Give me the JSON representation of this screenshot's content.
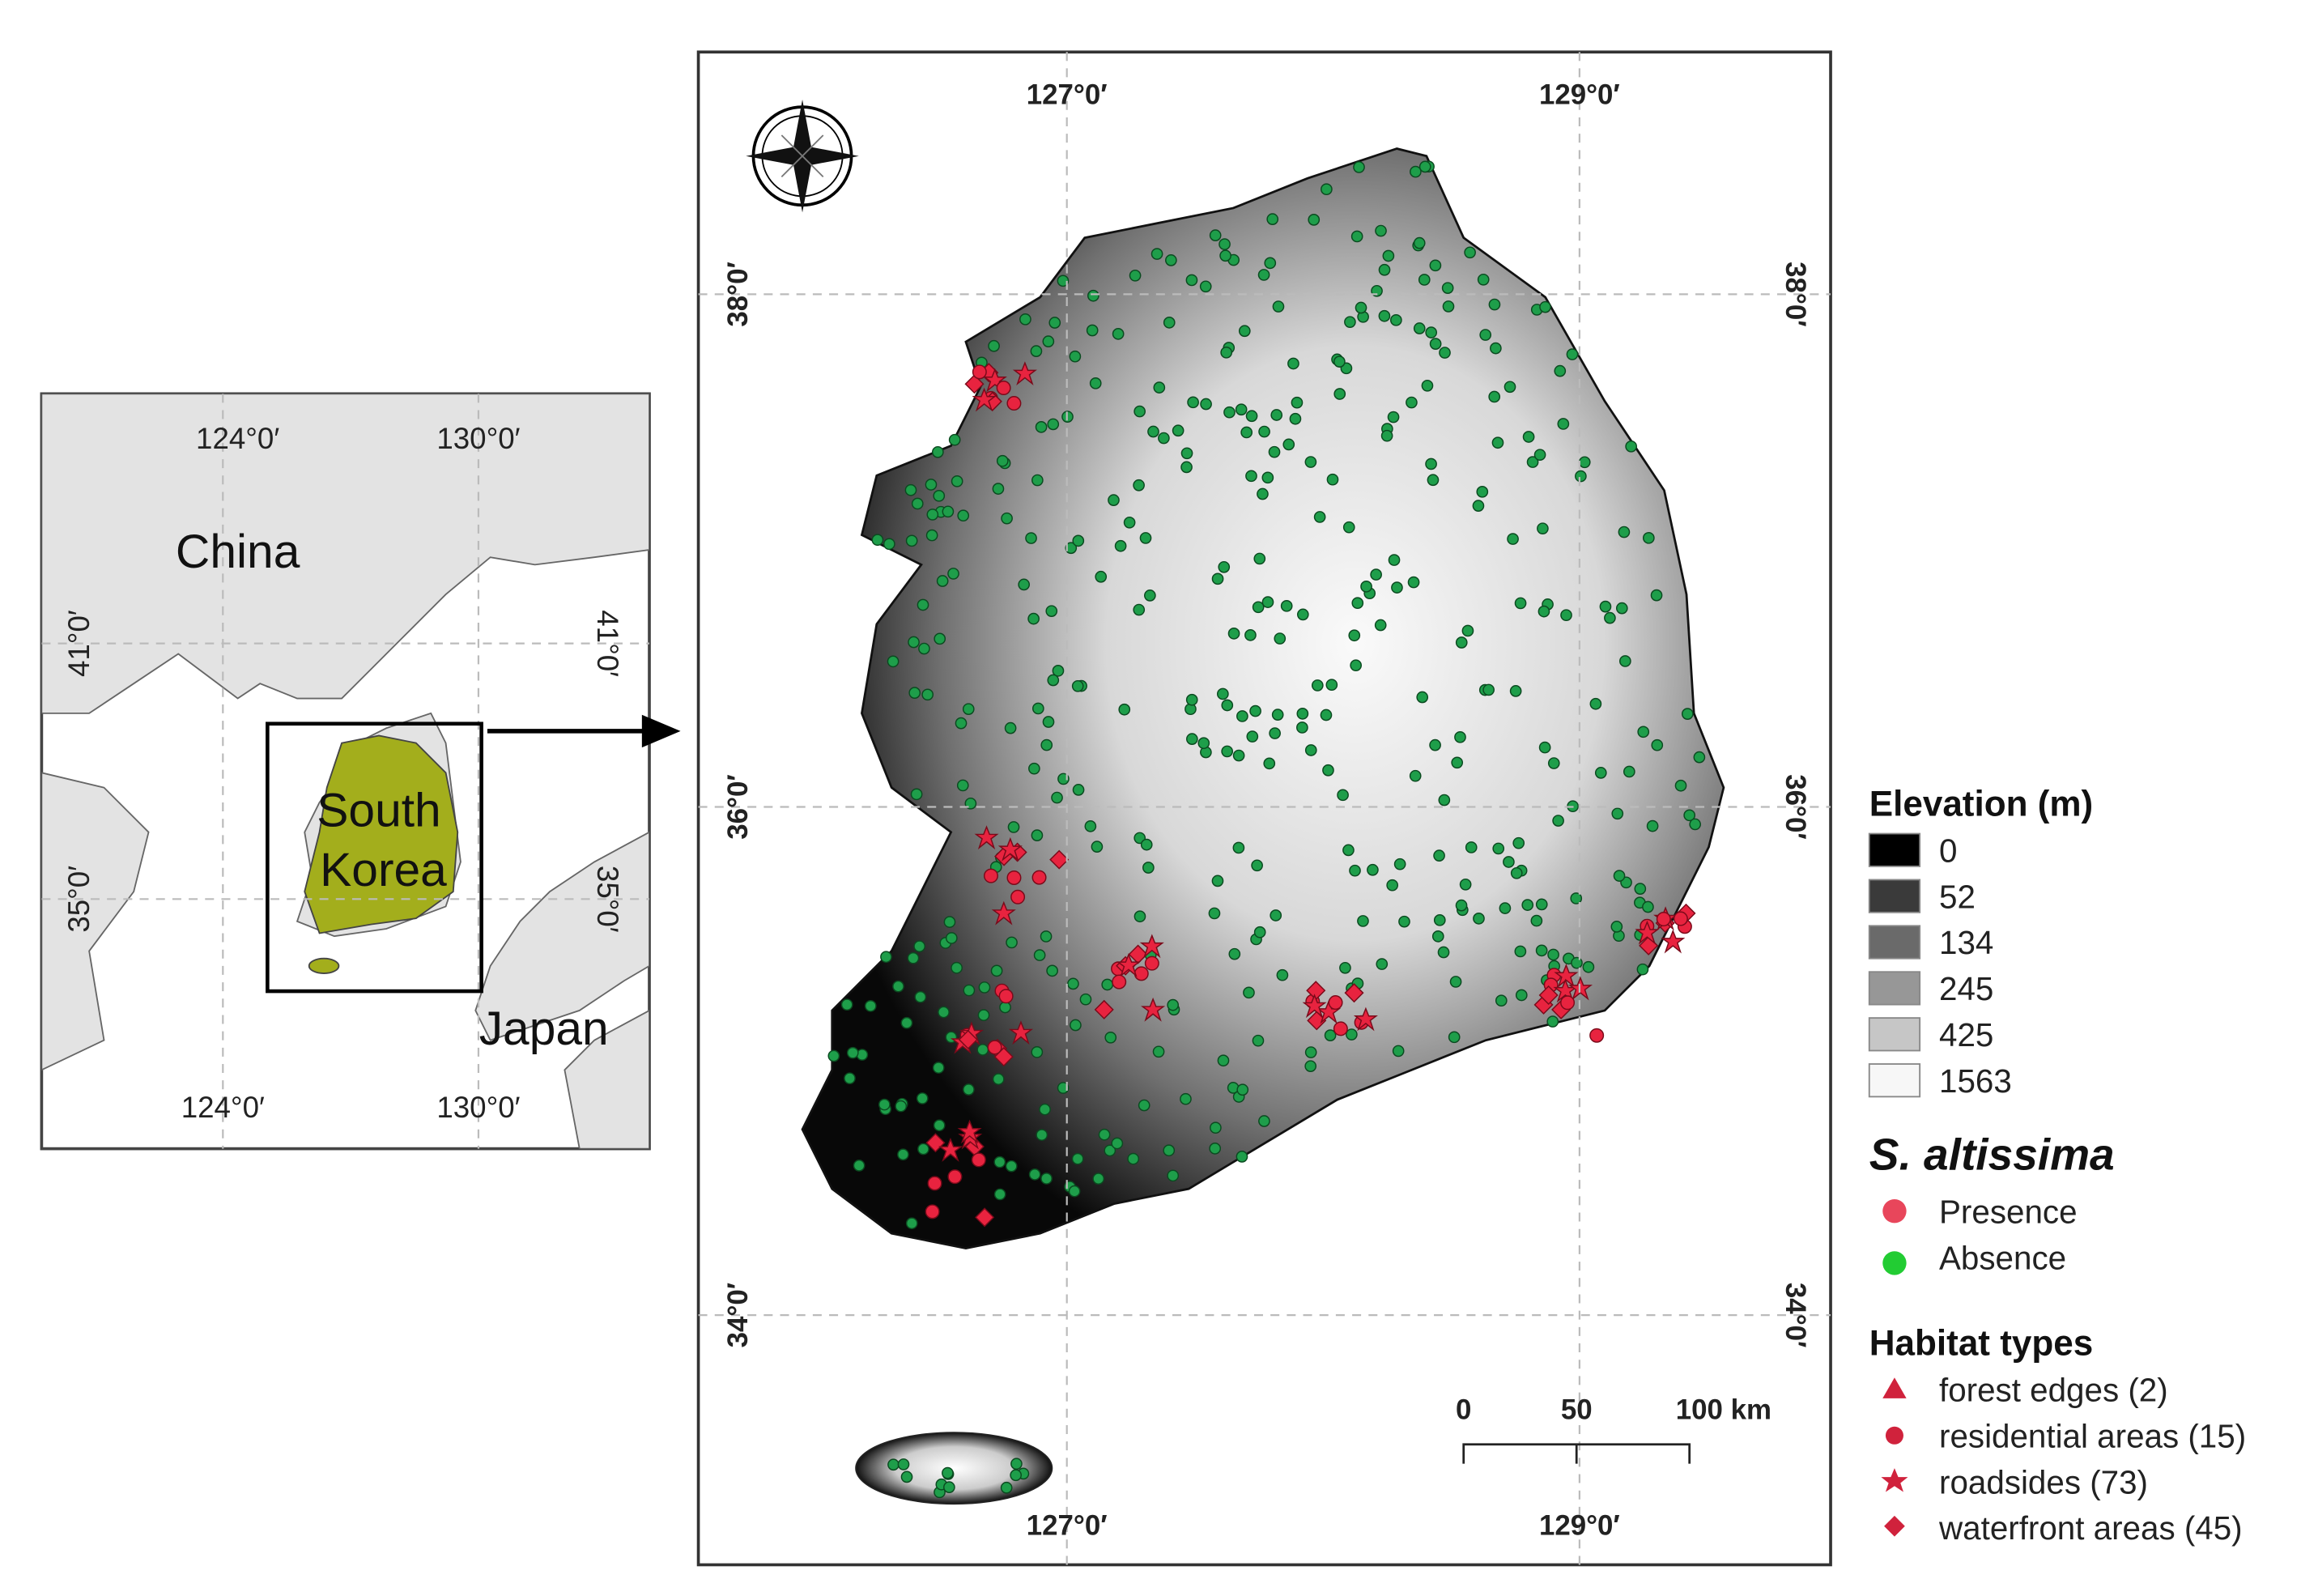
{
  "inset": {
    "lon_top": [
      "124°0′",
      "130°0′"
    ],
    "lon_bottom": [
      "124°0′",
      "130°0′"
    ],
    "lat_left": [
      "41°0′",
      "35°0′"
    ],
    "lat_right": [
      "41°0′",
      "35°0′"
    ],
    "country_labels": {
      "china": "China",
      "south_korea": [
        "South",
        "Korea"
      ],
      "japan": "Japan"
    }
  },
  "main": {
    "lon_top": [
      "127°0′",
      "129°0′"
    ],
    "lon_bottom": [
      "127°0′",
      "129°0′"
    ],
    "lat_left": [
      "38°0′",
      "36°0′",
      "34°0′"
    ],
    "lat_right": [
      "38°0′",
      "36°0′",
      "34°0′"
    ],
    "scale_bar": [
      "0",
      "50",
      "100 km"
    ]
  },
  "legend": {
    "elevation": {
      "title": "Elevation (m)",
      "entries": [
        0,
        52,
        134,
        245,
        425,
        1563
      ]
    },
    "species": {
      "title": "S. altissima",
      "entries": [
        "Presence",
        "Absence"
      ]
    },
    "habitat": {
      "title": "Habitat types",
      "entries": [
        "forest edges (2)",
        "residential areas (15)",
        "roadsides (73)",
        "waterfront areas (45)"
      ]
    }
  }
}
